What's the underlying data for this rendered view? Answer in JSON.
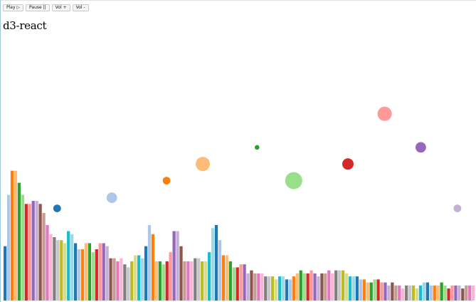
{
  "controls": {
    "play_label": "Play ▷",
    "pause_label": "Pause ||",
    "vol_up_label": "Vol +",
    "vol_down_label": "Vol -"
  },
  "app": {
    "title": "d3-react"
  },
  "palette": [
    "#1f77b4",
    "#aec7e8",
    "#ff7f0e",
    "#ffbb78",
    "#2ca02c",
    "#98df8a",
    "#d62728",
    "#ff9896",
    "#9467bd",
    "#c5b0d5",
    "#8c564b",
    "#c49c94",
    "#e377c2",
    "#f7b6d2",
    "#7f7f7f",
    "#c7c7c7",
    "#bcbd22",
    "#dbdb8d",
    "#17becf",
    "#9edae5"
  ],
  "chart_data": {
    "type": "bar",
    "description_units": "bar height levels of the audio frequency visualizer (0–1)",
    "bars": [
      0.18,
      0.35,
      0.43,
      0.43,
      0.39,
      0.35,
      0.32,
      0.32,
      0.33,
      0.33,
      0.32,
      0.29,
      0.25,
      0.22,
      0.21,
      0.2,
      0.2,
      0.19,
      0.23,
      0.22,
      0.19,
      0.17,
      0.17,
      0.19,
      0.19,
      0.16,
      0.17,
      0.19,
      0.19,
      0.18,
      0.14,
      0.14,
      0.13,
      0.14,
      0.12,
      0.11,
      0.13,
      0.15,
      0.15,
      0.14,
      0.18,
      0.25,
      0.22,
      0.13,
      0.13,
      0.12,
      0.13,
      0.16,
      0.23,
      0.23,
      0.18,
      0.13,
      0.13,
      0.13,
      0.14,
      0.14,
      0.13,
      0.13,
      0.16,
      0.24,
      0.25,
      0.2,
      0.15,
      0.15,
      0.13,
      0.11,
      0.11,
      0.12,
      0.12,
      0.09,
      0.1,
      0.09,
      0.09,
      0.09,
      0.08,
      0.08,
      0.08,
      0.07,
      0.08,
      0.08,
      0.07,
      0.07,
      0.08,
      0.09,
      0.1,
      0.09,
      0.09,
      0.1,
      0.09,
      0.08,
      0.09,
      0.09,
      0.1,
      0.09,
      0.1,
      0.1,
      0.1,
      0.09,
      0.08,
      0.08,
      0.08,
      0.07,
      0.07,
      0.06,
      0.06,
      0.07,
      0.07,
      0.06,
      0.06,
      0.05,
      0.06,
      0.05,
      0.05,
      0.04,
      0.05,
      0.05,
      0.05,
      0.04,
      0.05,
      0.06,
      0.06,
      0.05,
      0.05,
      0.05,
      0.06,
      0.05,
      0.04,
      0.05,
      0.05,
      0.05,
      0.04,
      0.05,
      0.05,
      0.05
    ],
    "circles": [
      {
        "x": 0.12,
        "y": 0.31,
        "r": 0.008,
        "color_index": 0
      },
      {
        "x": 0.235,
        "y": 0.345,
        "r": 0.011,
        "color_index": 1
      },
      {
        "x": 0.35,
        "y": 0.402,
        "r": 0.008,
        "color_index": 2
      },
      {
        "x": 0.426,
        "y": 0.457,
        "r": 0.015,
        "color_index": 3
      },
      {
        "x": 0.54,
        "y": 0.512,
        "r": 0.005,
        "color_index": 4
      },
      {
        "x": 0.617,
        "y": 0.402,
        "r": 0.018,
        "color_index": 5
      },
      {
        "x": 0.731,
        "y": 0.457,
        "r": 0.012,
        "color_index": 6
      },
      {
        "x": 0.808,
        "y": 0.623,
        "r": 0.015,
        "color_index": 7
      },
      {
        "x": 0.884,
        "y": 0.512,
        "r": 0.011,
        "color_index": 8
      },
      {
        "x": 0.961,
        "y": 0.31,
        "r": 0.008,
        "color_index": 9
      }
    ]
  }
}
